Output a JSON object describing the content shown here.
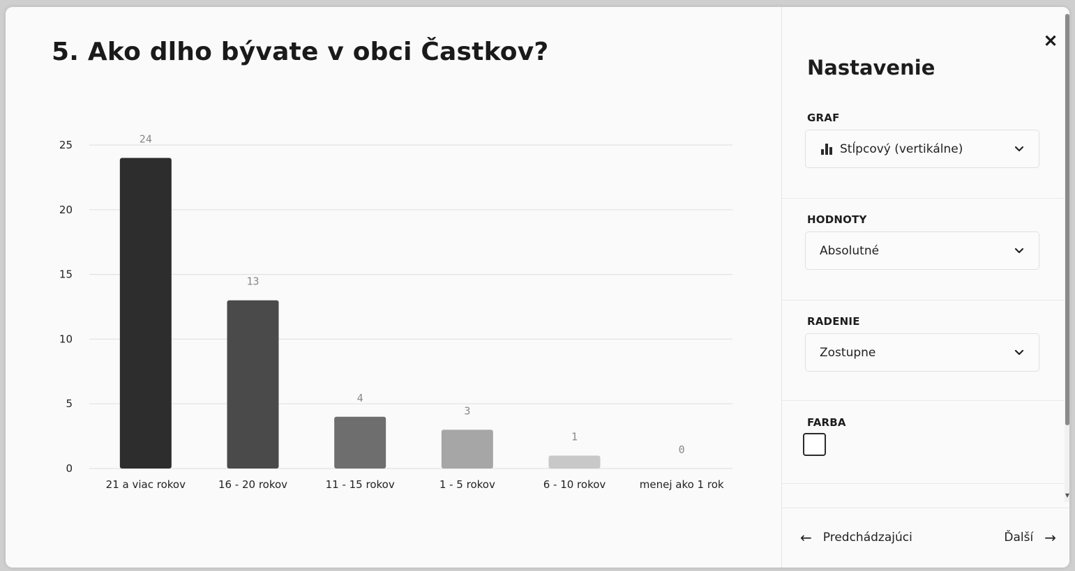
{
  "question": {
    "title": "5. Ako dlho bývate v obci Častkov?"
  },
  "chart_data": {
    "type": "bar",
    "title": "",
    "xlabel": "",
    "ylabel": "",
    "categories": [
      "21 a viac rokov",
      "16 - 20 rokov",
      "11 - 15 rokov",
      "1 - 5 rokov",
      "6 - 10 rokov",
      "menej ako 1 rok"
    ],
    "values": [
      24,
      13,
      4,
      3,
      1,
      0
    ],
    "bar_colors": [
      "#2d2d2d",
      "#4a4a4a",
      "#6e6e6e",
      "#a6a6a6",
      "#c8c8c8",
      "#e0e0e0"
    ],
    "ylim": [
      0,
      25
    ],
    "yticks": [
      0,
      5,
      10,
      15,
      20,
      25
    ],
    "grid": true,
    "legend": "none"
  },
  "settings": {
    "title": "Nastavenie",
    "close_icon": "close-icon",
    "chart_type": {
      "label": "GRAF",
      "value": "Stĺpcový (vertikálne)",
      "icon": "bar-chart-icon"
    },
    "values": {
      "label": "HODNOTY",
      "value": "Absolutné"
    },
    "sorting": {
      "label": "RADENIE",
      "value": "Zostupne"
    },
    "color": {
      "label": "FARBA",
      "swatch": "#ffffff"
    }
  },
  "navigation": {
    "prev_label": "Predchádzajúci",
    "next_label": "Ďalší"
  }
}
